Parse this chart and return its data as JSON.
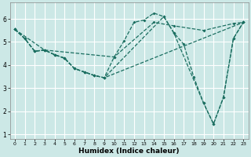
{
  "xlabel": "Humidex (Indice chaleur)",
  "bg_color": "#cce8e6",
  "grid_color": "#ffffff",
  "line_color": "#1a6e60",
  "xlim": [
    -0.5,
    23.5
  ],
  "ylim": [
    0.8,
    6.7
  ],
  "xticks": [
    0,
    1,
    2,
    3,
    4,
    5,
    6,
    7,
    8,
    9,
    10,
    11,
    12,
    13,
    14,
    15,
    16,
    17,
    18,
    19,
    20,
    21,
    22,
    23
  ],
  "yticks": [
    1,
    2,
    3,
    4,
    5,
    6
  ],
  "lines": [
    {
      "x": [
        0,
        1,
        2,
        3,
        4,
        5,
        6,
        7,
        8,
        9,
        10,
        11,
        12,
        13,
        14,
        15,
        16,
        17,
        18,
        19,
        20,
        21,
        22,
        23
      ],
      "y": [
        5.55,
        5.15,
        4.6,
        4.65,
        4.45,
        4.3,
        3.85,
        3.7,
        3.55,
        3.45,
        4.35,
        5.05,
        5.85,
        5.95,
        6.25,
        6.1,
        5.4,
        4.9,
        3.5,
        2.35,
        1.45,
        2.6,
        5.15,
        5.85
      ]
    },
    {
      "x": [
        0,
        3,
        10,
        14,
        16,
        19,
        22,
        23
      ],
      "y": [
        5.55,
        4.65,
        4.35,
        5.85,
        5.7,
        5.5,
        5.8,
        5.85
      ]
    },
    {
      "x": [
        0,
        1,
        2,
        3,
        4,
        5,
        6,
        7,
        8,
        9,
        15,
        16,
        19,
        20,
        21,
        22,
        23
      ],
      "y": [
        5.55,
        5.15,
        4.6,
        4.65,
        4.45,
        4.3,
        3.85,
        3.7,
        3.55,
        3.45,
        6.1,
        5.4,
        2.35,
        1.45,
        2.6,
        5.15,
        5.85
      ]
    },
    {
      "x": [
        0,
        1,
        2,
        3,
        4,
        5,
        6,
        7,
        8,
        9,
        23
      ],
      "y": [
        5.55,
        5.15,
        4.6,
        4.65,
        4.45,
        4.3,
        3.85,
        3.7,
        3.55,
        3.45,
        5.85
      ]
    }
  ]
}
